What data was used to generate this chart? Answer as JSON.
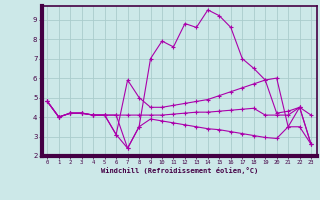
{
  "xlabel": "Windchill (Refroidissement éolien,°C)",
  "x": [
    0,
    1,
    2,
    3,
    4,
    5,
    6,
    7,
    8,
    9,
    10,
    11,
    12,
    13,
    14,
    15,
    16,
    17,
    18,
    19,
    20,
    21,
    22,
    23
  ],
  "line1": [
    4.8,
    4.0,
    4.2,
    4.2,
    4.1,
    4.1,
    4.1,
    2.4,
    3.5,
    7.0,
    7.9,
    7.6,
    8.8,
    8.6,
    9.5,
    9.2,
    8.6,
    7.0,
    6.5,
    5.9,
    4.2,
    4.3,
    4.5,
    2.6
  ],
  "line2": [
    4.8,
    4.0,
    4.2,
    4.2,
    4.1,
    4.1,
    4.1,
    4.1,
    4.1,
    4.1,
    4.1,
    4.15,
    4.2,
    4.25,
    4.25,
    4.3,
    4.35,
    4.4,
    4.45,
    4.1,
    4.1,
    4.1,
    4.5,
    4.1
  ],
  "line3": [
    4.8,
    4.0,
    4.2,
    4.2,
    4.1,
    4.1,
    3.1,
    2.4,
    3.5,
    3.9,
    3.8,
    3.7,
    3.6,
    3.5,
    3.4,
    3.35,
    3.25,
    3.15,
    3.05,
    2.95,
    2.9,
    3.5,
    4.5,
    2.6
  ],
  "line4": [
    4.8,
    4.0,
    4.2,
    4.2,
    4.1,
    4.1,
    3.1,
    5.9,
    5.0,
    4.5,
    4.5,
    4.6,
    4.7,
    4.8,
    4.9,
    5.1,
    5.3,
    5.5,
    5.7,
    5.9,
    6.0,
    3.5,
    3.5,
    2.6
  ],
  "line_color": "#aa00aa",
  "bg_color": "#cce8e8",
  "grid_color": "#aacccc",
  "ylim": [
    2,
    9.7
  ],
  "xlim": [
    -0.5,
    23.5
  ],
  "yticks": [
    2,
    3,
    4,
    5,
    6,
    7,
    8,
    9
  ],
  "xticks": [
    0,
    1,
    2,
    3,
    4,
    5,
    6,
    7,
    8,
    9,
    10,
    11,
    12,
    13,
    14,
    15,
    16,
    17,
    18,
    19,
    20,
    21,
    22,
    23
  ],
  "left_bar_color": "#440044",
  "bottom_bar_color": "#440044"
}
